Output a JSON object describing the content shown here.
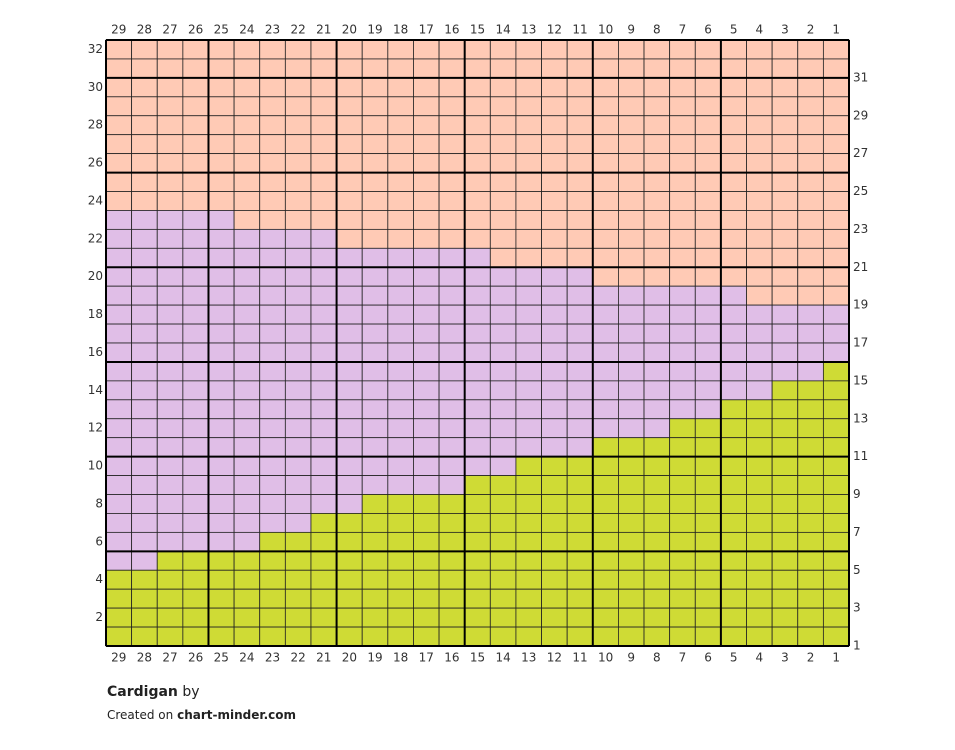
{
  "chart": {
    "column_labels": [
      29,
      28,
      27,
      26,
      25,
      24,
      23,
      22,
      21,
      20,
      19,
      18,
      17,
      16,
      15,
      14,
      13,
      12,
      11,
      10,
      9,
      8,
      7,
      6,
      5,
      4,
      3,
      2,
      1
    ],
    "row_labels": [
      32,
      31,
      30,
      29,
      28,
      27,
      26,
      25,
      24,
      23,
      22,
      21,
      20,
      19,
      18,
      17,
      16,
      15,
      14,
      13,
      12,
      11,
      10,
      9,
      8,
      7,
      6,
      5,
      4,
      3,
      2,
      1
    ],
    "colors": {
      "G": "#cfdb35",
      "P": "#e0bee7",
      "O": "#ffcab5"
    },
    "cells": [
      "OOOOOOOOOOOOOOOOOOOOOOOOOOOOO",
      "OOOOOOOOOOOOOOOOOOOOOOOOOOOOO",
      "OOOOOOOOOOOOOOOOOOOOOOOOOOOOO",
      "OOOOOOOOOOOOOOOOOOOOOOOOOOOOO",
      "OOOOOOOOOOOOOOOOOOOOOOOOOOOOO",
      "OOOOOOOOOOOOOOOOOOOOOOOOOOOOO",
      "OOOOOOOOOOOOOOOOOOOOOOOOOOOOO",
      "OOOOOOOOOOOOOOOOOOOOOOOOOOOOO",
      "OOOOOOOOOOOOOOOOOOOOOOOOOOOOO",
      "PPPPPOOOOOOOOOOOOOOOOOOOOOOOO",
      "PPPPPPPPPOOOOOOOOOOOOOOOOOOOO",
      "PPPPPPPPPPPPPPPOOOOOOOOOOOOOO",
      "PPPPPPPPPPPPPPPPPPPOOOOOOOOOO",
      "PPPPPPPPPPPPPPPPPPPPPPPPPOOOO",
      "PPPPPPPPPPPPPPPPPPPPPPPPPPPPP",
      "PPPPPPPPPPPPPPPPPPPPPPPPPPPPP",
      "PPPPPPPPPPPPPPPPPPPPPPPPPPPPP",
      "PPPPPPPPPPPPPPPPPPPPPPPPPPPPG",
      "PPPPPPPPPPPPPPPPPPPPPPPPPPGGG",
      "PPPPPPPPPPPPPPPPPPPPPPPPGGGGG",
      "PPPPPPPPPPPPPPPPPPPPPPGGGGGGG",
      "PPPPPPPPPPPPPPPPPPPGGGGGGGGGG",
      "PPPPPPPPPPPPPPPPGGGGGGGGGGGGG",
      "PPPPPPPPPPPPPPGGGGGGGGGGGGGGG",
      "PPPPPPPPPPGGGGGGGGGGGGGGGGGGG",
      "PPPPPPPPGGGGGGGGGGGGGGGGGGGGG",
      "PPPPPPGGGGGGGGGGGGGGGGGGGGGGG",
      "PPGGGGGGGGGGGGGGGGGGGGGGGGGGG",
      "GGGGGGGGGGGGGGGGGGGGGGGGGGGGG",
      "GGGGGGGGGGGGGGGGGGGGGGGGGGGGG",
      "GGGGGGGGGGGGGGGGGGGGGGGGGGGGG",
      "GGGGGGGGGGGGGGGGGGGGGGGGGGGGG"
    ]
  },
  "footer": {
    "title": "Cardigan",
    "by": "by",
    "created": "Created on",
    "site": "chart-minder.com"
  }
}
